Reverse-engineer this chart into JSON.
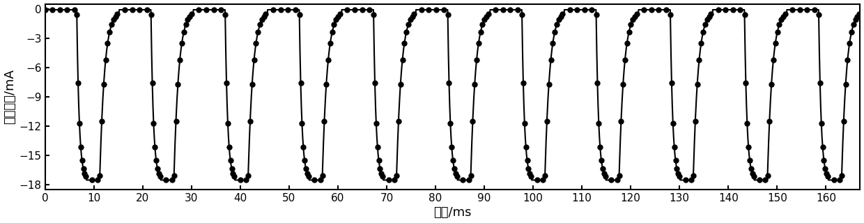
{
  "xlabel": "时间/ms",
  "ylabel": "输出电流/mA",
  "xlim": [
    0,
    167
  ],
  "ylim": [
    -18.5,
    0.5
  ],
  "yticks": [
    0,
    -3,
    -6,
    -9,
    -12,
    -15,
    -18
  ],
  "xticks": [
    0,
    10,
    20,
    30,
    40,
    50,
    60,
    70,
    80,
    90,
    100,
    110,
    120,
    130,
    140,
    150,
    160
  ],
  "period": 15.2,
  "high_duration": 6.5,
  "I_min": -17.5,
  "I_max": -0.1,
  "fall_tau": 0.5,
  "rise_tau": 1.0,
  "color": "#000000",
  "marker_size": 5.0,
  "linewidth": 1.5
}
